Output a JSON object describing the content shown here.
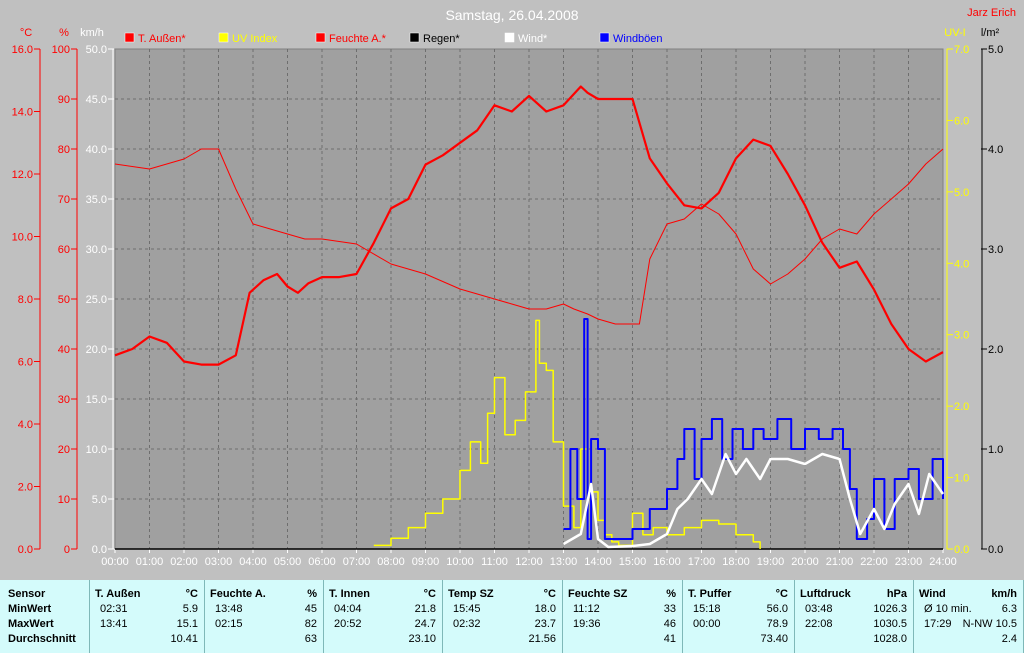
{
  "title": "Samstag, 26.04.2008",
  "author": "Jarz Erich",
  "axes": {
    "left1": {
      "unit": "°C",
      "ticks": [
        "16.0",
        "14.0",
        "12.0",
        "10.0",
        "8.0",
        "6.0",
        "4.0",
        "2.0",
        "0.0"
      ],
      "color": "#ff0000"
    },
    "left2": {
      "unit": "%",
      "ticks": [
        "100",
        "90",
        "80",
        "70",
        "60",
        "50",
        "40",
        "30",
        "20",
        "10",
        "0"
      ],
      "color": "#ff0000"
    },
    "left3": {
      "unit": "km/h",
      "ticks": [
        "50.0",
        "45.0",
        "40.0",
        "35.0",
        "30.0",
        "25.0",
        "20.0",
        "15.0",
        "10.0",
        "5.0",
        "0.0"
      ],
      "color": "#ffffff"
    },
    "right1": {
      "unit": "UV-I",
      "ticks": [
        "7.0",
        "6.0",
        "5.0",
        "4.0",
        "3.0",
        "2.0",
        "1.0",
        "0.0"
      ],
      "color": "#ffff00"
    },
    "right2": {
      "unit": "l/m²",
      "ticks": [
        "5.0",
        "4.0",
        "3.0",
        "2.0",
        "1.0",
        "0.0"
      ],
      "color": "#000000"
    },
    "x_ticks": [
      "00:00",
      "01:00",
      "02:00",
      "03:00",
      "04:00",
      "05:00",
      "06:00",
      "07:00",
      "08:00",
      "09:00",
      "10:00",
      "11:00",
      "12:00",
      "13:00",
      "14:00",
      "15:00",
      "16:00",
      "17:00",
      "18:00",
      "19:00",
      "20:00",
      "21:00",
      "22:00",
      "23:00",
      "24:00"
    ]
  },
  "legend": [
    {
      "label": "T. Außen*",
      "color": "#ff0000"
    },
    {
      "label": "UV Index",
      "color": "#ffff00"
    },
    {
      "label": "Feuchte A.*",
      "color": "#ff0000"
    },
    {
      "label": "Regen*",
      "color": "#000000"
    },
    {
      "label": "Wind*",
      "color": "#ffffff"
    },
    {
      "label": "Windböen",
      "color": "#0000ff"
    }
  ],
  "chart_data": {
    "type": "line",
    "title": "Samstag, 26.04.2008",
    "x_unit": "hour of day",
    "xlim": [
      0,
      24
    ],
    "grid": true,
    "legend_position": "top",
    "series": [
      {
        "name": "T. Außen*",
        "unit": "°C",
        "color": "#ff0000",
        "ylim": [
          0,
          16
        ],
        "x": [
          0,
          0.5,
          1,
          1.5,
          2,
          2.5,
          3,
          3.5,
          3.9,
          4.3,
          4.7,
          5,
          5.3,
          5.6,
          6,
          6.5,
          7,
          7.5,
          8,
          8.5,
          9,
          9.5,
          10,
          10.5,
          11,
          11.5,
          12,
          12.5,
          13,
          13.5,
          13.7,
          14,
          15,
          15.5,
          16,
          16.5,
          17,
          17.5,
          18,
          18.5,
          19,
          19.5,
          20,
          20.5,
          21,
          21.5,
          22,
          22.5,
          23,
          23.5,
          24
        ],
        "values": [
          6.2,
          6.4,
          6.8,
          6.6,
          6.0,
          5.9,
          5.9,
          6.2,
          8.2,
          8.6,
          8.8,
          8.4,
          8.2,
          8.5,
          8.7,
          8.7,
          8.8,
          9.8,
          10.9,
          11.2,
          12.3,
          12.6,
          13.0,
          13.4,
          14.2,
          14.0,
          14.5,
          14.0,
          14.2,
          14.8,
          14.6,
          14.4,
          14.4,
          12.5,
          11.7,
          11.0,
          10.9,
          11.4,
          12.5,
          13.1,
          12.9,
          12.0,
          11.0,
          9.8,
          9.0,
          9.2,
          8.3,
          7.2,
          6.4,
          6.0,
          6.3
        ]
      },
      {
        "name": "Feuchte A.*",
        "unit": "%",
        "color": "#ff0000",
        "ylim": [
          0,
          100
        ],
        "x": [
          0,
          1,
          2,
          2.5,
          3,
          3.5,
          4,
          4.5,
          5,
          5.5,
          6,
          7,
          8,
          9,
          10,
          10.5,
          11,
          11.5,
          12,
          12.5,
          13,
          13.3,
          13.7,
          14,
          14.5,
          15,
          15.2,
          15.5,
          16,
          16.5,
          17,
          17.5,
          18,
          18.5,
          19,
          19.5,
          20,
          20.5,
          21,
          21.5,
          22,
          22.5,
          23,
          23.5,
          24
        ],
        "values": [
          77,
          76,
          78,
          80,
          80,
          72,
          65,
          64,
          63,
          62,
          62,
          61,
          57,
          55,
          52,
          51,
          50,
          49,
          48,
          48,
          49,
          48,
          47,
          46,
          45,
          45,
          45,
          58,
          65,
          66,
          69,
          67,
          63,
          56,
          53,
          55,
          58,
          62,
          64,
          63,
          67,
          70,
          73,
          77,
          80
        ]
      },
      {
        "name": "UV Index",
        "unit": "UV-I",
        "color": "#ffff00",
        "ylim": [
          0,
          7
        ],
        "x": [
          7.5,
          8,
          8.5,
          9,
          9.5,
          10,
          10.3,
          10.6,
          10.8,
          11,
          11.3,
          11.6,
          11.9,
          12.2,
          12.3,
          12.5,
          12.7,
          13,
          13.3,
          13.5,
          13.7,
          14,
          14.2,
          14.4,
          14.6,
          14.8,
          15,
          15.3,
          15.6,
          16,
          16.5,
          17,
          17.5,
          18,
          18.5,
          18.7
        ],
        "values": [
          0.05,
          0.15,
          0.3,
          0.5,
          0.7,
          1.1,
          1.5,
          1.2,
          1.9,
          2.4,
          1.6,
          1.8,
          2.2,
          3.2,
          2.6,
          2.5,
          1.5,
          0.6,
          0.3,
          1.4,
          0.8,
          0.4,
          0.2,
          0.1,
          0.05,
          0.05,
          0.5,
          0.2,
          0.3,
          0.2,
          0.3,
          0.4,
          0.35,
          0.2,
          0.1,
          0.0
        ]
      },
      {
        "name": "Wind*",
        "unit": "km/h",
        "color": "#ffffff",
        "ylim": [
          0,
          50
        ],
        "x": [
          13,
          13.5,
          13.8,
          14,
          14.3,
          15,
          15.5,
          16,
          16.3,
          16.6,
          17,
          17.3,
          17.7,
          18,
          18.3,
          18.7,
          19,
          19.5,
          20,
          20.5,
          21,
          21.3,
          21.6,
          22,
          22.3,
          22.6,
          23,
          23.3,
          23.6,
          24
        ],
        "values": [
          0.5,
          1.5,
          6.5,
          1.0,
          0.2,
          0.3,
          0.5,
          1.5,
          4.0,
          5.0,
          7.0,
          5.5,
          9.5,
          7.5,
          9.0,
          7.0,
          9.0,
          9.0,
          8.5,
          9.5,
          9.0,
          5.0,
          1.5,
          4.0,
          2.0,
          4.5,
          6.5,
          3.5,
          7.5,
          5.5
        ]
      },
      {
        "name": "Windböen",
        "unit": "km/h",
        "color": "#0000ff",
        "ylim": [
          0,
          50
        ],
        "x": [
          13,
          13.2,
          13.4,
          13.6,
          13.7,
          13.8,
          14,
          14.2,
          15,
          15.5,
          16,
          16.3,
          16.5,
          16.8,
          17,
          17.3,
          17.6,
          17.9,
          18.2,
          18.5,
          18.8,
          19.2,
          19.6,
          20,
          20.4,
          20.8,
          21.1,
          21.3,
          21.5,
          21.8,
          22,
          22.3,
          22.6,
          23,
          23.3,
          23.7,
          24
        ],
        "values": [
          2,
          10,
          5,
          23,
          1,
          11,
          10,
          1,
          2,
          4,
          6,
          9,
          12,
          7,
          11,
          13,
          9,
          12,
          10,
          12,
          11,
          13,
          10,
          12,
          11,
          12,
          10,
          6,
          1,
          3,
          7,
          2,
          7,
          8,
          5,
          9,
          5
        ]
      },
      {
        "name": "Regen*",
        "unit": "l/m²",
        "color": "#000000",
        "ylim": [
          0,
          5
        ],
        "x": [
          0,
          24
        ],
        "values": [
          0,
          0
        ]
      }
    ]
  },
  "table": {
    "row_labels": [
      "Sensor",
      "MinWert",
      "MaxWert",
      "Durchschnitt"
    ],
    "sections": [
      {
        "name": "T. Außen",
        "unit": "°C",
        "min_time": "02:31",
        "min": "5.9",
        "max_time": "13:41",
        "max": "15.1",
        "avg": "10.41"
      },
      {
        "name": "Feuchte A.",
        "unit": "%",
        "min_time": "13:48",
        "min": "45",
        "max_time": "02:15",
        "max": "82",
        "avg": "63"
      },
      {
        "name": "T. Innen",
        "unit": "°C",
        "min_time": "04:04",
        "min": "21.8",
        "max_time": "20:52",
        "max": "24.7",
        "avg": "23.10"
      },
      {
        "name": "Temp SZ",
        "unit": "°C",
        "min_time": "15:45",
        "min": "18.0",
        "max_time": "02:32",
        "max": "23.7",
        "avg": "21.56"
      },
      {
        "name": "Feuchte SZ",
        "unit": "%",
        "min_time": "11:12",
        "min": "33",
        "max_time": "19:36",
        "max": "46",
        "avg": "41"
      },
      {
        "name": "T. Puffer",
        "unit": "°C",
        "min_time": "15:18",
        "min": "56.0",
        "max_time": "00:00",
        "max": "78.9",
        "avg": "73.40"
      },
      {
        "name": "Luftdruck",
        "unit": "hPa",
        "min_time": "03:48",
        "min": "1026.3",
        "max_time": "22:08",
        "max": "1030.5",
        "avg": "1028.0"
      },
      {
        "name": "Wind",
        "unit": "km/h",
        "min_time": "Ø 10 min.",
        "min": "6.3",
        "max_time": "17:29",
        "max": "N-NW 10.5",
        "avg": "2.4"
      }
    ]
  }
}
